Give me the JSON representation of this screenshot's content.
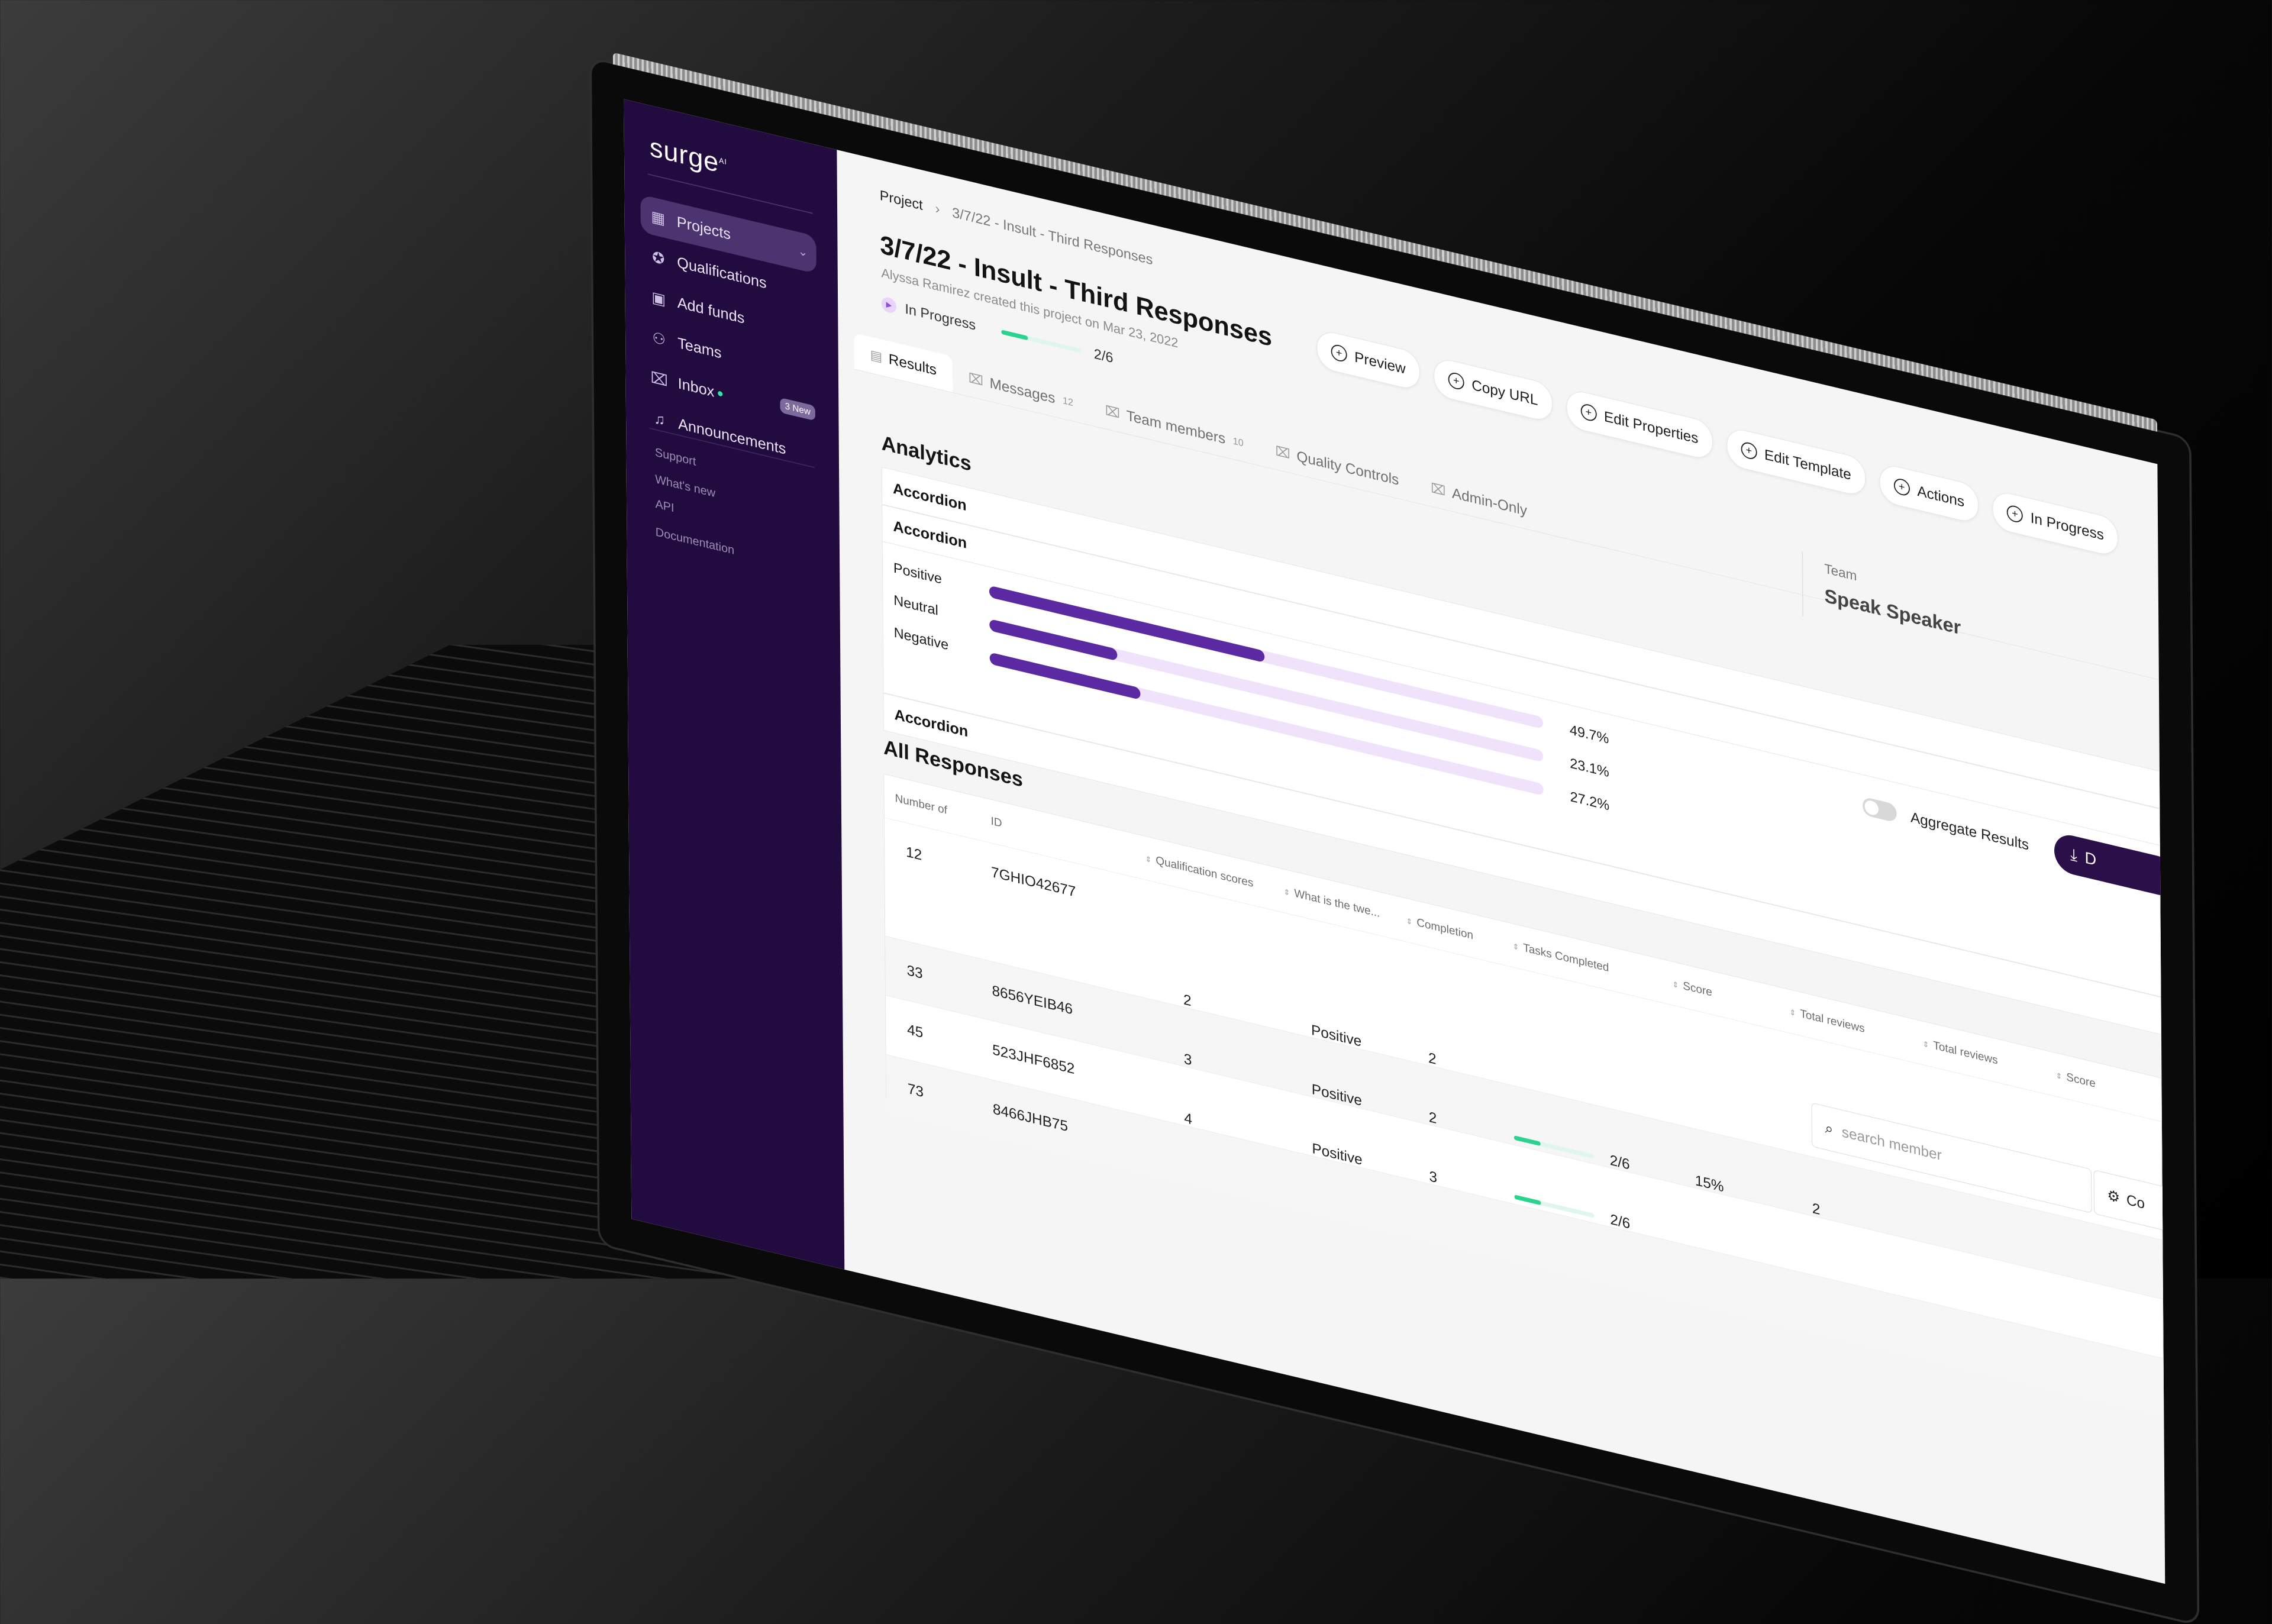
{
  "sidebar": {
    "logo": "surge",
    "logo_mark": "AI",
    "items": [
      {
        "label": "Projects",
        "icon": "grid-icon"
      },
      {
        "label": "Qualifications",
        "icon": "medal-icon"
      },
      {
        "label": "Add funds",
        "icon": "wallet-icon"
      },
      {
        "label": "Teams",
        "icon": "users-icon"
      },
      {
        "label": "Inbox",
        "icon": "inbox-icon"
      },
      {
        "label": "Announcements",
        "icon": "bell-icon"
      }
    ],
    "inbox_badge": "3 New",
    "links": [
      "Support",
      "What's new",
      "API",
      "Documentation"
    ]
  },
  "breadcrumb": {
    "root": "Project",
    "current": "3/7/22 - Insult - Third Responses"
  },
  "header": {
    "title": "3/7/22 - Insult - Third Responses",
    "subtitle": "Alyssa Ramirez created this project on Mar 23, 2022",
    "status": "In Progress",
    "progress_label": "2/6",
    "progress_fraction": 0.333
  },
  "actions": [
    "Preview",
    "Copy URL",
    "Edit Properties",
    "Edit Template",
    "Actions",
    "In Progress"
  ],
  "tabs": [
    {
      "label": "Results",
      "count": ""
    },
    {
      "label": "Messages",
      "count": "12"
    },
    {
      "label": "Team members",
      "count": "10"
    },
    {
      "label": "Quality Controls",
      "count": ""
    },
    {
      "label": "Admin-Only",
      "count": ""
    }
  ],
  "team_card": {
    "label": "Team",
    "value": "Speak Speaker"
  },
  "analytics": {
    "title": "Analytics",
    "accordions": [
      "Accordion",
      "Accordion",
      "Accordion"
    ],
    "aggregate_label": "Aggregate Results",
    "download_label": "D",
    "rows": [
      {
        "label": "Positive",
        "value": "49.7%",
        "fraction": 0.497
      },
      {
        "label": "Neutral",
        "value": "23.1%",
        "fraction": 0.231
      },
      {
        "label": "Negative",
        "value": "27.2%",
        "fraction": 0.272
      }
    ]
  },
  "responses": {
    "title": "All Responses",
    "search_placeholder": "search member",
    "columns_button": "Co",
    "headers": [
      "Number of",
      "ID",
      "Qualification scores",
      "What is the twe...",
      "Completion",
      "Tasks Completed",
      "Score",
      "Total reviews",
      "Total reviews",
      "Score"
    ],
    "rows": [
      {
        "number": "12",
        "id": "7GHIO42677",
        "qual": "",
        "sentiment": "",
        "completion": "",
        "tasks": "",
        "tasks_fraction": 0,
        "score": "",
        "reviews": ""
      },
      {
        "number": "33",
        "id": "8656YEIB46",
        "qual": "2",
        "sentiment": "Positive",
        "completion": "2",
        "tasks": "",
        "tasks_fraction": 0,
        "score": "",
        "reviews": ""
      },
      {
        "number": "45",
        "id": "523JHF6852",
        "qual": "3",
        "sentiment": "Positive",
        "completion": "2",
        "tasks": "2/6",
        "tasks_fraction": 0.333,
        "score": "15%",
        "reviews": "2"
      },
      {
        "number": "73",
        "id": "8466JHB75",
        "qual": "4",
        "sentiment": "Positive",
        "completion": "3",
        "tasks": "2/6",
        "tasks_fraction": 0.333,
        "score": "",
        "reviews": ""
      }
    ]
  },
  "colors": {
    "sidebar_bg": "#220c3f",
    "accent": "#5b2aa3",
    "progress": "#2bd38e",
    "track": "#f0e2fa"
  }
}
